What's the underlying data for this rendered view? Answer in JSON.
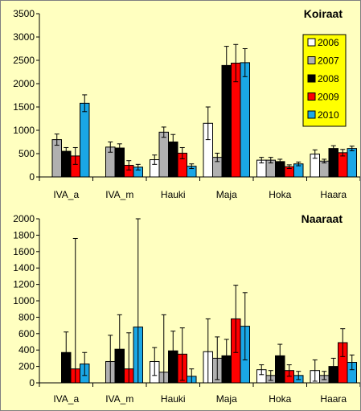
{
  "colors": {
    "background": "#ffffc0",
    "legend_background": "#ffff00",
    "series": [
      "#ffffff",
      "#b0b0b0",
      "#000000",
      "#ff0000",
      "#1aa7e6"
    ]
  },
  "chart_data": [
    {
      "type": "bar",
      "title": "Koiraat",
      "categories": [
        "IVA_a",
        "IVA_m",
        "Hauki",
        "Maja",
        "Hoka",
        "Haara"
      ],
      "ylim": [
        0,
        3500
      ],
      "yticks": [
        "0",
        "500",
        "1000",
        "1500",
        "2000",
        "2500",
        "3000",
        "3500"
      ],
      "legend": {
        "position": "top-right",
        "items": [
          "2006",
          "2007",
          "2008",
          "2009",
          "2010"
        ]
      },
      "series": [
        {
          "name": "2006",
          "values": [
            null,
            null,
            370,
            1150,
            360,
            490
          ],
          "errors": [
            null,
            null,
            100,
            350,
            60,
            90
          ]
        },
        {
          "name": "2007",
          "values": [
            800,
            640,
            960,
            420,
            360,
            340
          ],
          "errors": [
            120,
            110,
            110,
            90,
            60,
            40
          ]
        },
        {
          "name": "2008",
          "values": [
            550,
            620,
            750,
            2390,
            330,
            610
          ],
          "errors": [
            80,
            90,
            160,
            410,
            50,
            60
          ]
        },
        {
          "name": "2009",
          "values": [
            450,
            250,
            510,
            2440,
            220,
            520
          ],
          "errors": [
            180,
            100,
            120,
            400,
            40,
            70
          ]
        },
        {
          "name": "2010",
          "values": [
            1580,
            210,
            230,
            2450,
            280,
            610
          ],
          "errors": [
            180,
            60,
            50,
            300,
            40,
            50
          ]
        }
      ]
    },
    {
      "type": "bar",
      "title": "Naaraat",
      "categories": [
        "IVA_a",
        "IVA_m",
        "Hauki",
        "Maja",
        "Hoka",
        "Haara"
      ],
      "ylim": [
        0,
        2000
      ],
      "yticks": [
        "0",
        "200",
        "400",
        "600",
        "800",
        "1000",
        "1200",
        "1400",
        "1600",
        "1800",
        "2000"
      ],
      "series": [
        {
          "name": "2006",
          "values": [
            null,
            null,
            260,
            380,
            160,
            150
          ],
          "errors": [
            null,
            null,
            170,
            400,
            60,
            130
          ]
        },
        {
          "name": "2007",
          "values": [
            null,
            260,
            130,
            300,
            90,
            90
          ],
          "errors": [
            null,
            320,
            700,
            260,
            60,
            50
          ]
        },
        {
          "name": "2008",
          "values": [
            370,
            410,
            390,
            330,
            330,
            200
          ],
          "errors": [
            250,
            420,
            240,
            200,
            140,
            100
          ]
        },
        {
          "name": "2009",
          "values": [
            170,
            170,
            350,
            780,
            150,
            490
          ],
          "errors": [
            1590,
            440,
            320,
            410,
            70,
            170
          ]
        },
        {
          "name": "2010",
          "values": [
            230,
            680,
            80,
            690,
            90,
            250
          ],
          "errors": [
            140,
            1320,
            90,
            410,
            50,
            90
          ]
        }
      ]
    }
  ]
}
